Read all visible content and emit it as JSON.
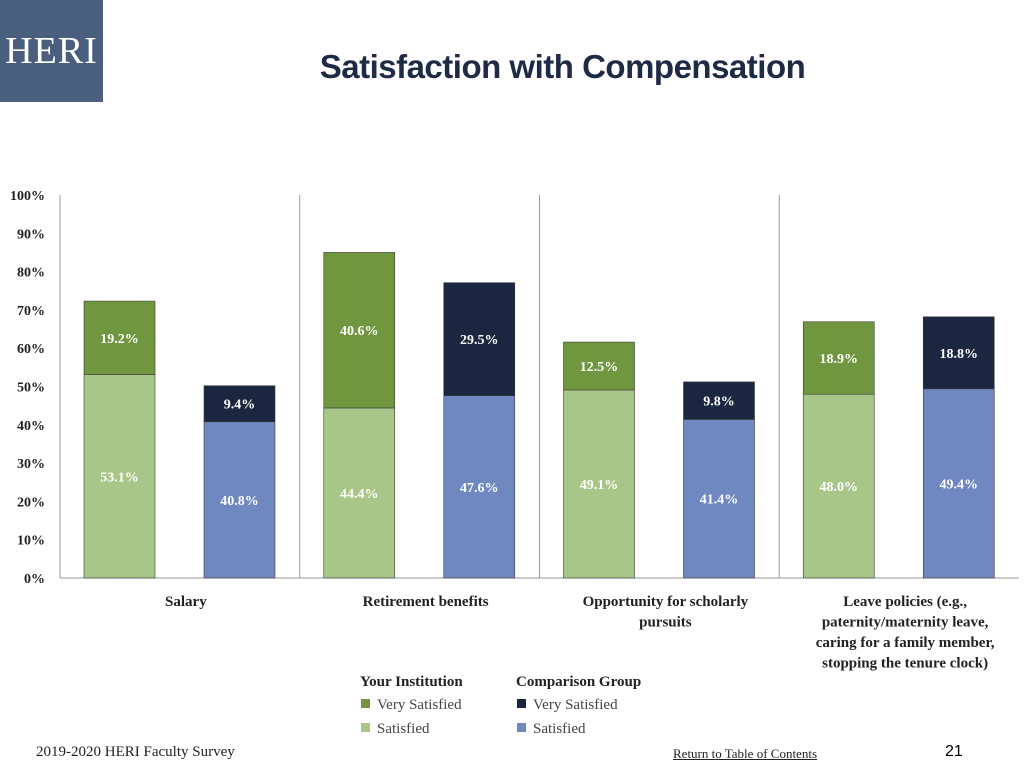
{
  "header": {
    "logo_text": "HERI",
    "title": "Satisfaction with Compensation"
  },
  "chart_data": {
    "type": "bar",
    "stacked": true,
    "ylim": [
      0,
      100
    ],
    "y_ticks": [
      "0%",
      "10%",
      "20%",
      "30%",
      "40%",
      "50%",
      "60%",
      "70%",
      "80%",
      "90%",
      "100%"
    ],
    "categories": [
      [
        "Salary"
      ],
      [
        "Retirement benefits"
      ],
      [
        "Opportunity for scholarly",
        "pursuits"
      ],
      [
        "Leave policies (e.g.,",
        "paternity/maternity leave,",
        "caring for a family member,",
        "stopping the tenure clock)"
      ]
    ],
    "groups": [
      {
        "satisfied": 53.1,
        "very_satisfied": 19.2,
        "satisfied_label": "53.1%",
        "very_label": "19.2%"
      },
      {
        "satisfied": 40.8,
        "very_satisfied": 9.4,
        "satisfied_label": "40.8%",
        "very_label": "9.4%"
      },
      {
        "satisfied": 44.4,
        "very_satisfied": 40.6,
        "satisfied_label": "44.4%",
        "very_label": "40.6%"
      },
      {
        "satisfied": 47.6,
        "very_satisfied": 29.5,
        "satisfied_label": "47.6%",
        "very_label": "29.5%"
      },
      {
        "satisfied": 49.1,
        "very_satisfied": 12.5,
        "satisfied_label": "49.1%",
        "very_label": "12.5%"
      },
      {
        "satisfied": 41.4,
        "very_satisfied": 9.8,
        "satisfied_label": "41.4%",
        "very_label": "9.8%"
      },
      {
        "satisfied": 48.0,
        "very_satisfied": 18.9,
        "satisfied_label": "48.0%",
        "very_label": "18.9%"
      },
      {
        "satisfied": 49.4,
        "very_satisfied": 18.8,
        "satisfied_label": "49.4%",
        "very_label": "18.8%"
      }
    ],
    "legend": [
      {
        "group": "Your Institution",
        "items": [
          {
            "label": "Very Satisfied",
            "color": "#70963f"
          },
          {
            "label": "Satisfied",
            "color": "#a9c689"
          }
        ]
      },
      {
        "group": "Comparison Group",
        "items": [
          {
            "label": "Very Satisfied",
            "color": "#1b2741"
          },
          {
            "label": "Satisfied",
            "color": "#6f88c0"
          }
        ]
      }
    ],
    "colors": {
      "institution_very": "#70963f",
      "institution_satisfied": "#a9c689",
      "comparison_very": "#1b2741",
      "comparison_satisfied": "#6f88c0"
    }
  },
  "footer": {
    "survey": "2019-2020 HERI Faculty Survey",
    "toc_link": "Return to Table of Contents",
    "page_number": "21"
  }
}
